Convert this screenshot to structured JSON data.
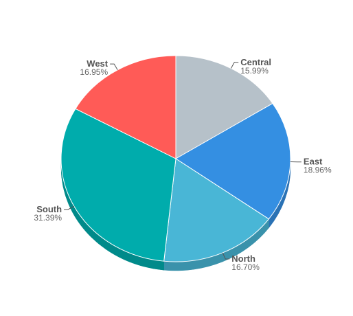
{
  "chart_data": {
    "type": "pie",
    "style": "3d",
    "start_angle_deg": 0,
    "direction": "clockwise",
    "slices": [
      {
        "name": "Central",
        "value": 15.99,
        "label": "15.99%",
        "color": "#b6c1c9",
        "side_color": "#8f9aa2"
      },
      {
        "name": "East",
        "value": 18.96,
        "label": "18.96%",
        "color": "#348fe2",
        "side_color": "#2a72b5"
      },
      {
        "name": "North",
        "value": 16.7,
        "label": "16.70%",
        "color": "#49b6d6",
        "side_color": "#3a92ab"
      },
      {
        "name": "South",
        "value": 31.39,
        "label": "31.39%",
        "color": "#00acac",
        "side_color": "#008a8a"
      },
      {
        "name": "West",
        "value": 16.95,
        "label": "16.95%",
        "color": "#ff5b57",
        "side_color": "#cc4946"
      }
    ]
  }
}
